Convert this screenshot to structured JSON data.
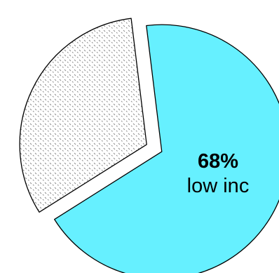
{
  "chart_data": {
    "type": "pie",
    "slices": [
      {
        "value": 68,
        "label_value": "68%",
        "label": "low inc",
        "color": "#66f0ff",
        "pattern": "none"
      },
      {
        "value": 32,
        "label_value": "",
        "label": "",
        "color": "#ffffff",
        "pattern": "dotted-hatch"
      }
    ],
    "title": "",
    "legend": "none",
    "exploded": true
  }
}
